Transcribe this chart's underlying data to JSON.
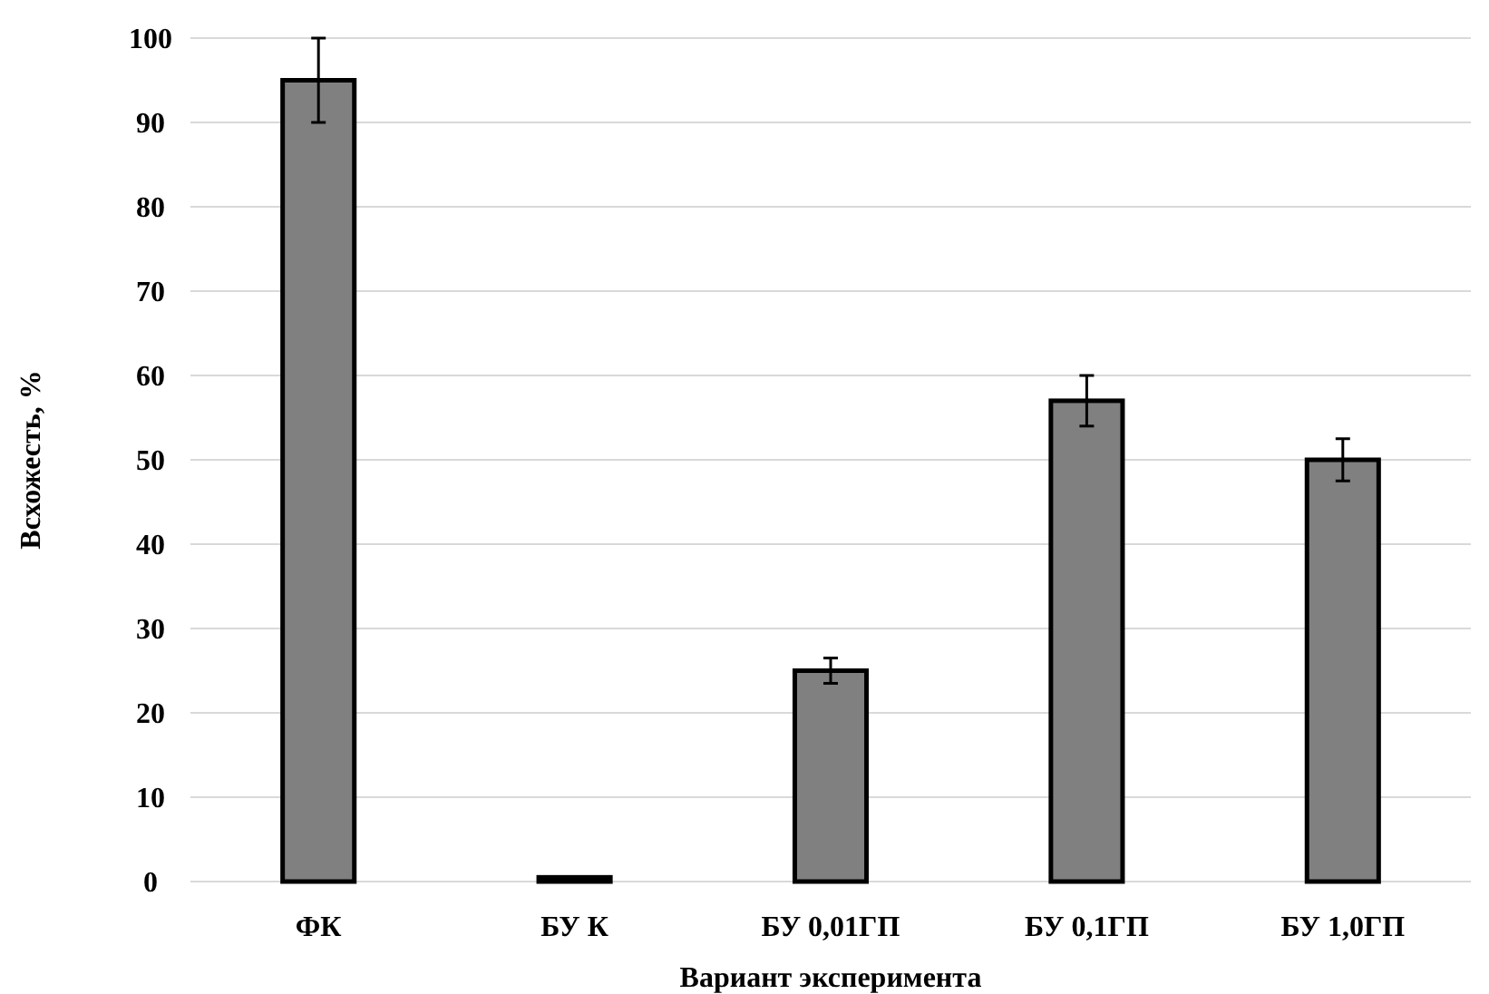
{
  "chart_data": {
    "type": "bar",
    "xlabel": "Вариант эксперимента",
    "ylabel": "Всхожесть, %",
    "categories": [
      "ФК",
      "БУ К",
      "БУ 0,01ГП",
      "БУ 0,1ГП",
      "БУ 1,0ГП"
    ],
    "values": [
      95,
      0.5,
      25,
      57,
      50
    ],
    "errors": [
      5,
      null,
      1.5,
      3,
      2.5
    ],
    "color": "#808080",
    "ylim": [
      0,
      100
    ],
    "yticks": [
      0,
      10,
      20,
      30,
      40,
      50,
      60,
      70,
      80,
      90,
      100
    ],
    "grid": "y"
  }
}
